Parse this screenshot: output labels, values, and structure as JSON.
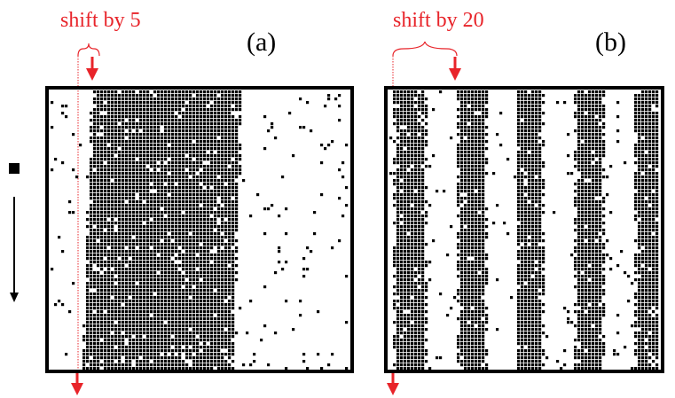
{
  "panels": [
    {
      "id": "a",
      "label": "(a)",
      "annotation": "shift by 5",
      "shift": 5,
      "pattern": "single wide black band, slightly slanted, noisy cells",
      "band_count": 1
    },
    {
      "id": "b",
      "label": "(b)",
      "annotation": "shift by 20",
      "shift": 20,
      "pattern": "five vertical black stripes, noisy cells",
      "band_count": 5
    }
  ],
  "colors": {
    "annotation": "#e8242a",
    "cell": "#000000",
    "frame": "#000000",
    "background": "#ffffff"
  },
  "icons": {
    "side_marker": "filled-square-icon",
    "time_axis": "down-arrow-icon",
    "shift_arrow": "red-down-arrow-icon"
  }
}
